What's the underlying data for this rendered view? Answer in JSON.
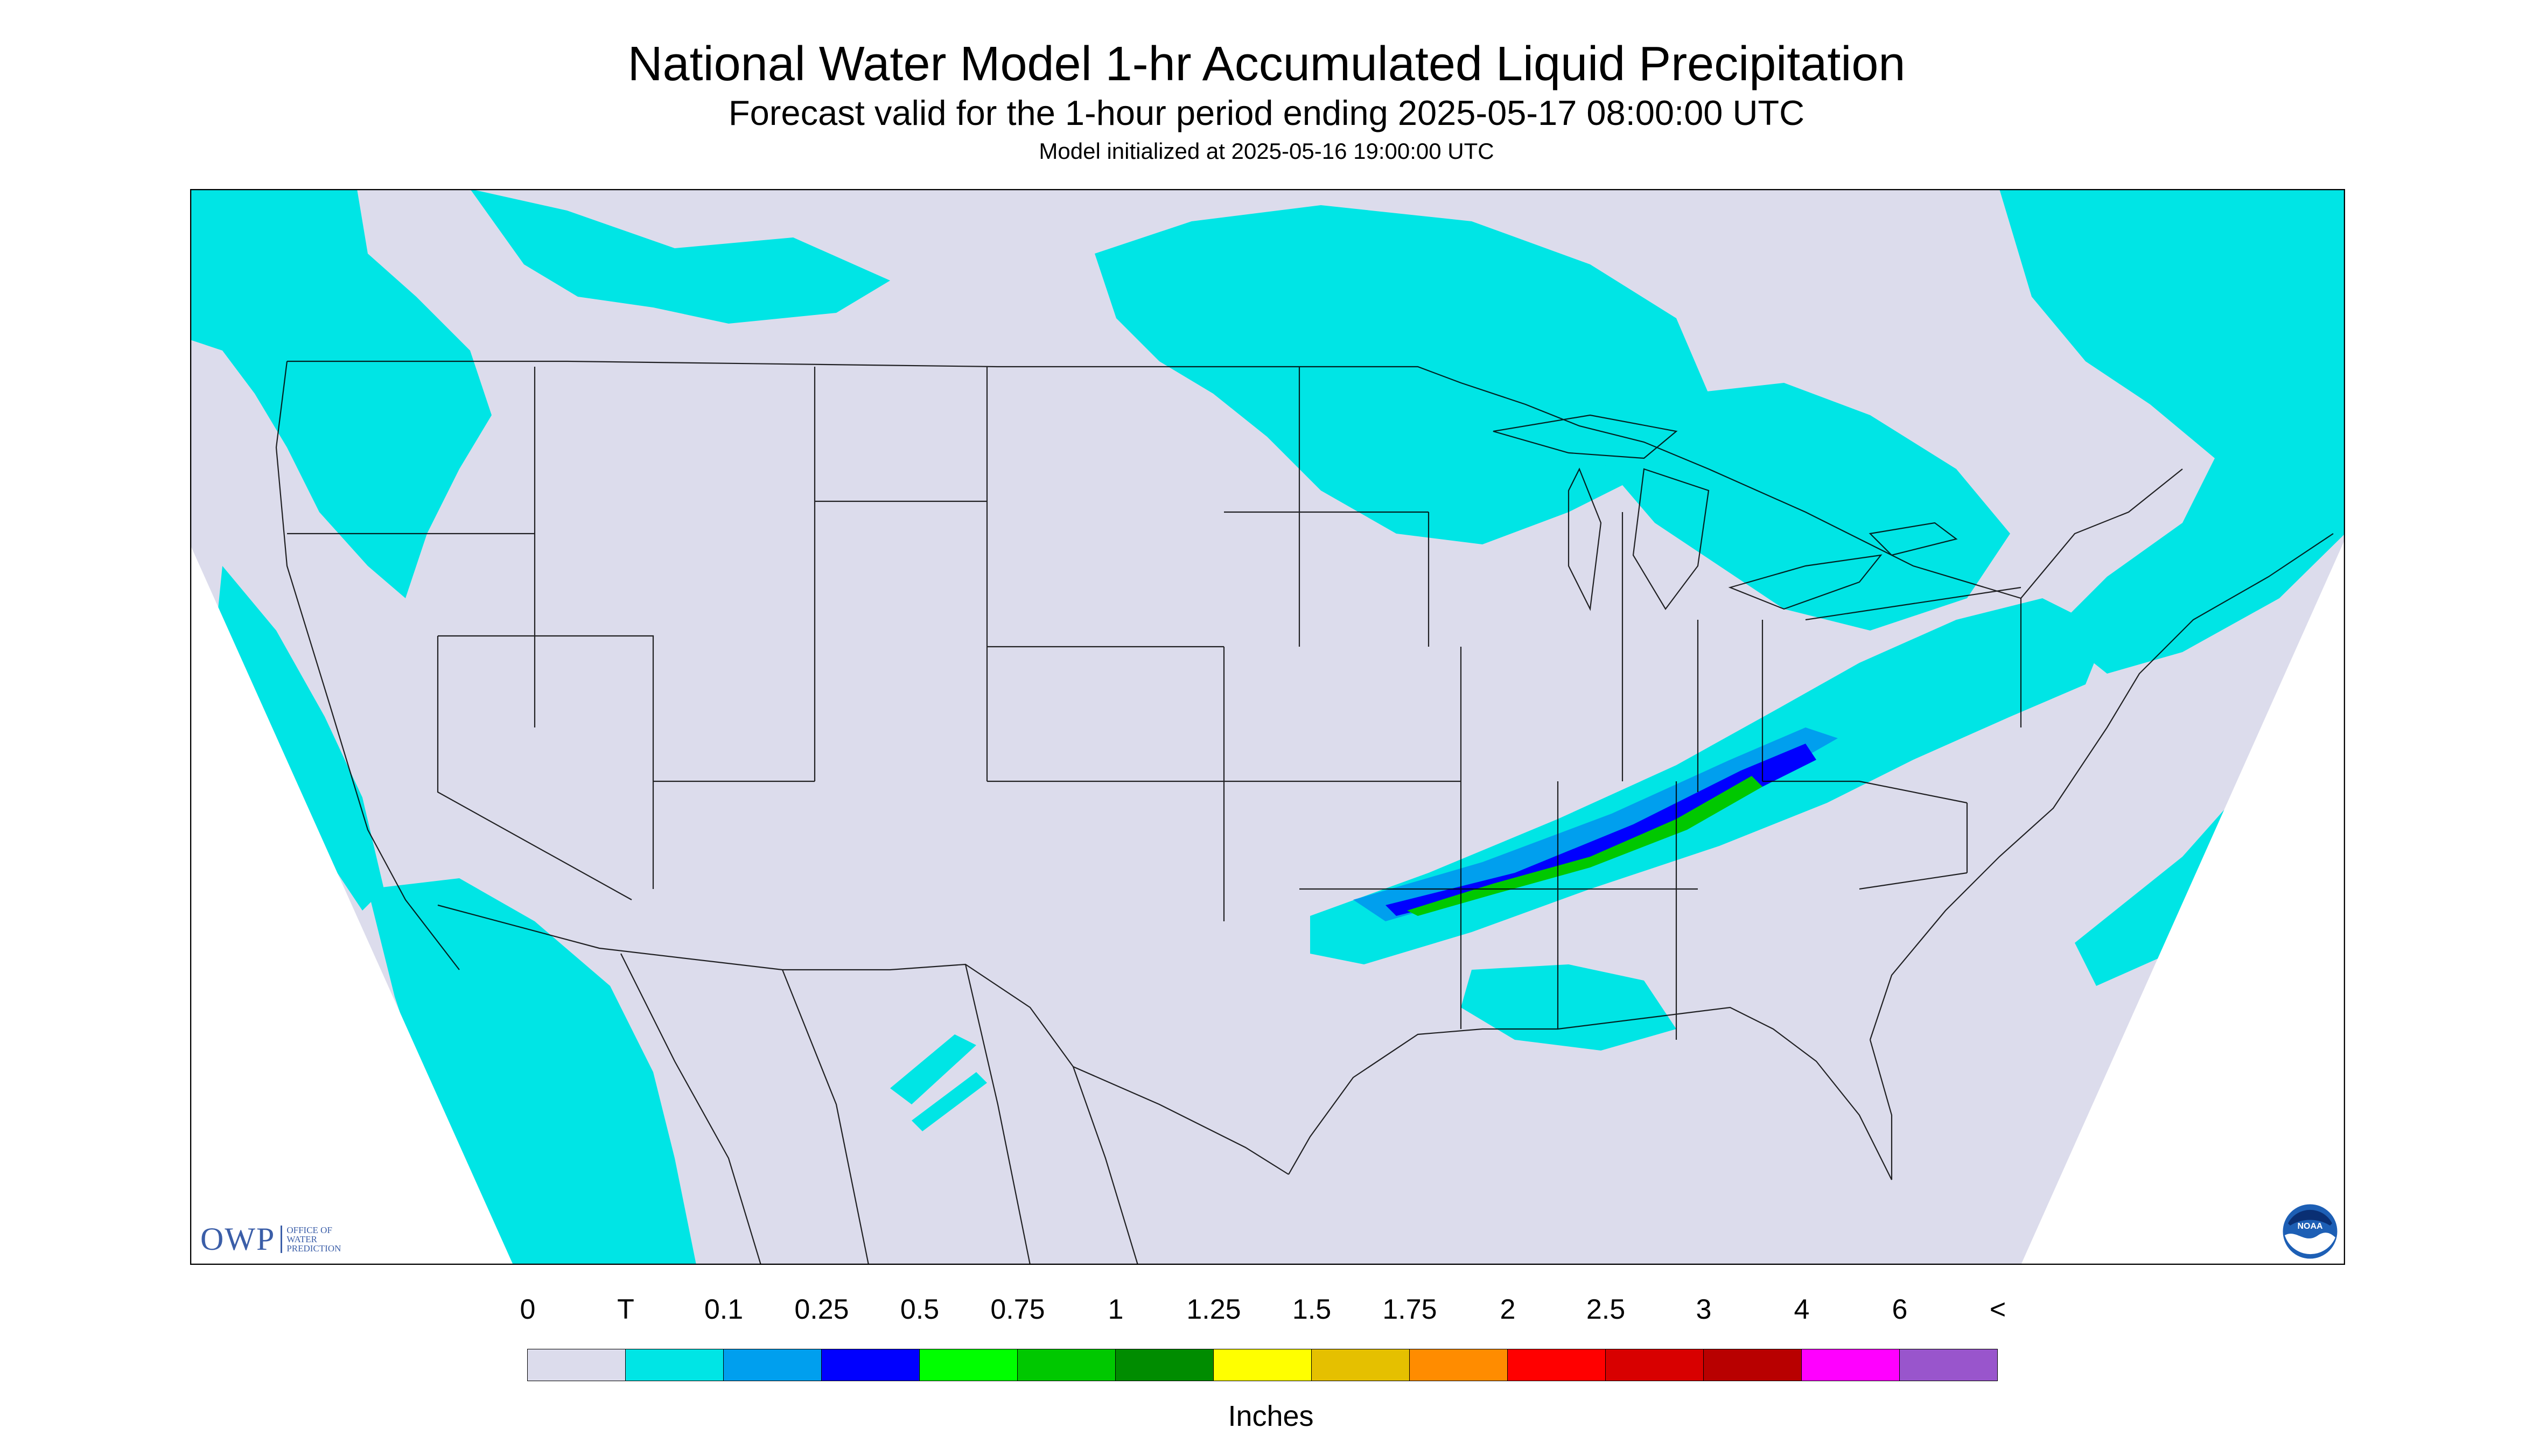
{
  "header": {
    "title": "National Water Model 1-hr Accumulated Liquid Precipitation",
    "subtitle": "Forecast valid for the 1-hour period ending 2025-05-17 08:00:00 UTC",
    "init": "Model initialized at 2025-05-16 19:00:00 UTC"
  },
  "map": {
    "projection": "Lambert conformal CONUS",
    "background_color": "#dcdcec",
    "trace_color": "#00e5e5",
    "light_blue_color": "#009fee",
    "blue_color": "#0000ff",
    "green_color": "#00c800"
  },
  "legend": {
    "tick_labels": [
      "0",
      "T",
      "0.1",
      "0.25",
      "0.5",
      "0.75",
      "1",
      "1.25",
      "1.5",
      "1.75",
      "2",
      "2.5",
      "3",
      "4",
      "6",
      "<"
    ],
    "colors": [
      "#dcdcec",
      "#00e5e5",
      "#009fee",
      "#0000ff",
      "#00ff00",
      "#00c800",
      "#008c00",
      "#ffff00",
      "#e5c000",
      "#ff8c00",
      "#ff0000",
      "#d80000",
      "#b80000",
      "#ff00ff",
      "#9955cc"
    ],
    "units": "Inches"
  },
  "logos": {
    "owp_letters": "OWP",
    "owp_subtext": [
      "OFFICE OF",
      "WATER",
      "PREDICTION"
    ],
    "noaa_text": "NOAA"
  }
}
